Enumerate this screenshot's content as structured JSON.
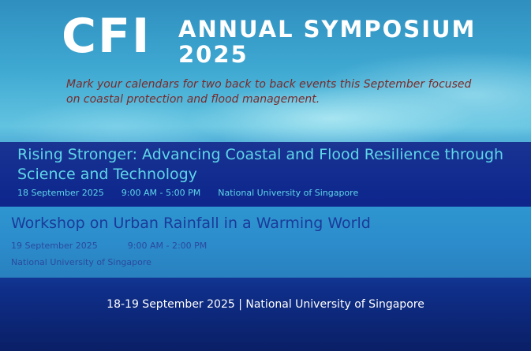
{
  "header": {
    "logo": "CFI",
    "title_line1": "ANNUAL SYMPOSIUM",
    "title_line2": "2025",
    "tagline": "Mark your calendars for two back to back events this September focused on coastal protection and flood management."
  },
  "events": [
    {
      "title": "Rising Stronger: Advancing Coastal and Flood Resilience through Science and Technology",
      "date": "18 September 2025",
      "time": "9:00 AM - 5:00 PM",
      "venue": "National University of Singapore"
    },
    {
      "title": "Workshop on Urban Rainfall in a Warming World",
      "date": "19 September 2025",
      "time": "9:00 AM - 2:00 PM",
      "venue": "National University of Singapore"
    }
  ],
  "footer": "18-19 September 2025 | National University of Singapore"
}
